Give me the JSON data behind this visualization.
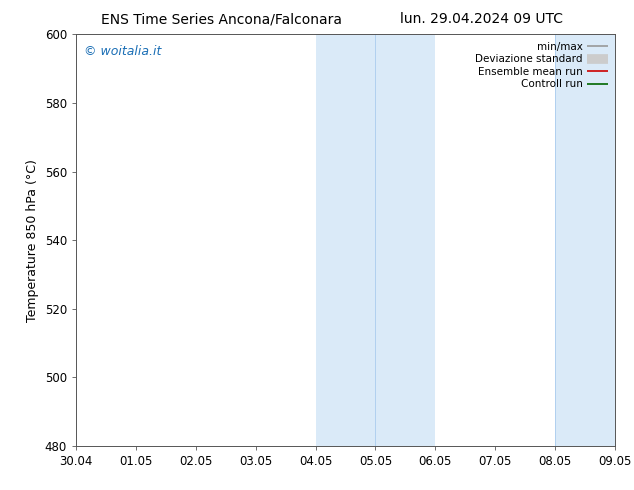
{
  "title_left": "ENS Time Series Ancona/Falconara",
  "title_right": "lun. 29.04.2024 09 UTC",
  "ylabel": "Temperature 850 hPa (°C)",
  "ylim": [
    480,
    600
  ],
  "yticks": [
    480,
    500,
    520,
    540,
    560,
    580,
    600
  ],
  "xlim": [
    0,
    9
  ],
  "xtick_labels": [
    "30.04",
    "01.05",
    "02.05",
    "03.05",
    "04.05",
    "05.05",
    "06.05",
    "07.05",
    "08.05",
    "09.05"
  ],
  "xtick_positions": [
    0,
    1,
    2,
    3,
    4,
    5,
    6,
    7,
    8,
    9
  ],
  "watermark": "© woitalia.it",
  "watermark_color": "#1a6eb5",
  "shaded_bands": [
    {
      "xmin": 4,
      "xmax": 6
    },
    {
      "xmin": 8,
      "xmax": 9
    }
  ],
  "shade_color": "#daeaf8",
  "band_dividers": [
    5,
    8
  ],
  "legend_entries": [
    {
      "label": "min/max",
      "color": "#999999",
      "lw": 1.2
    },
    {
      "label": "Deviazione standard",
      "color": "#cccccc",
      "lw": 7
    },
    {
      "label": "Ensemble mean run",
      "color": "#cc0000",
      "lw": 1.2
    },
    {
      "label": "Controll run",
      "color": "#006600",
      "lw": 1.2
    }
  ],
  "bg_color": "#ffffff",
  "plot_bg_color": "#ffffff",
  "title_fontsize": 10,
  "axis_label_fontsize": 9,
  "tick_fontsize": 8.5,
  "legend_fontsize": 7.5,
  "watermark_fontsize": 9
}
